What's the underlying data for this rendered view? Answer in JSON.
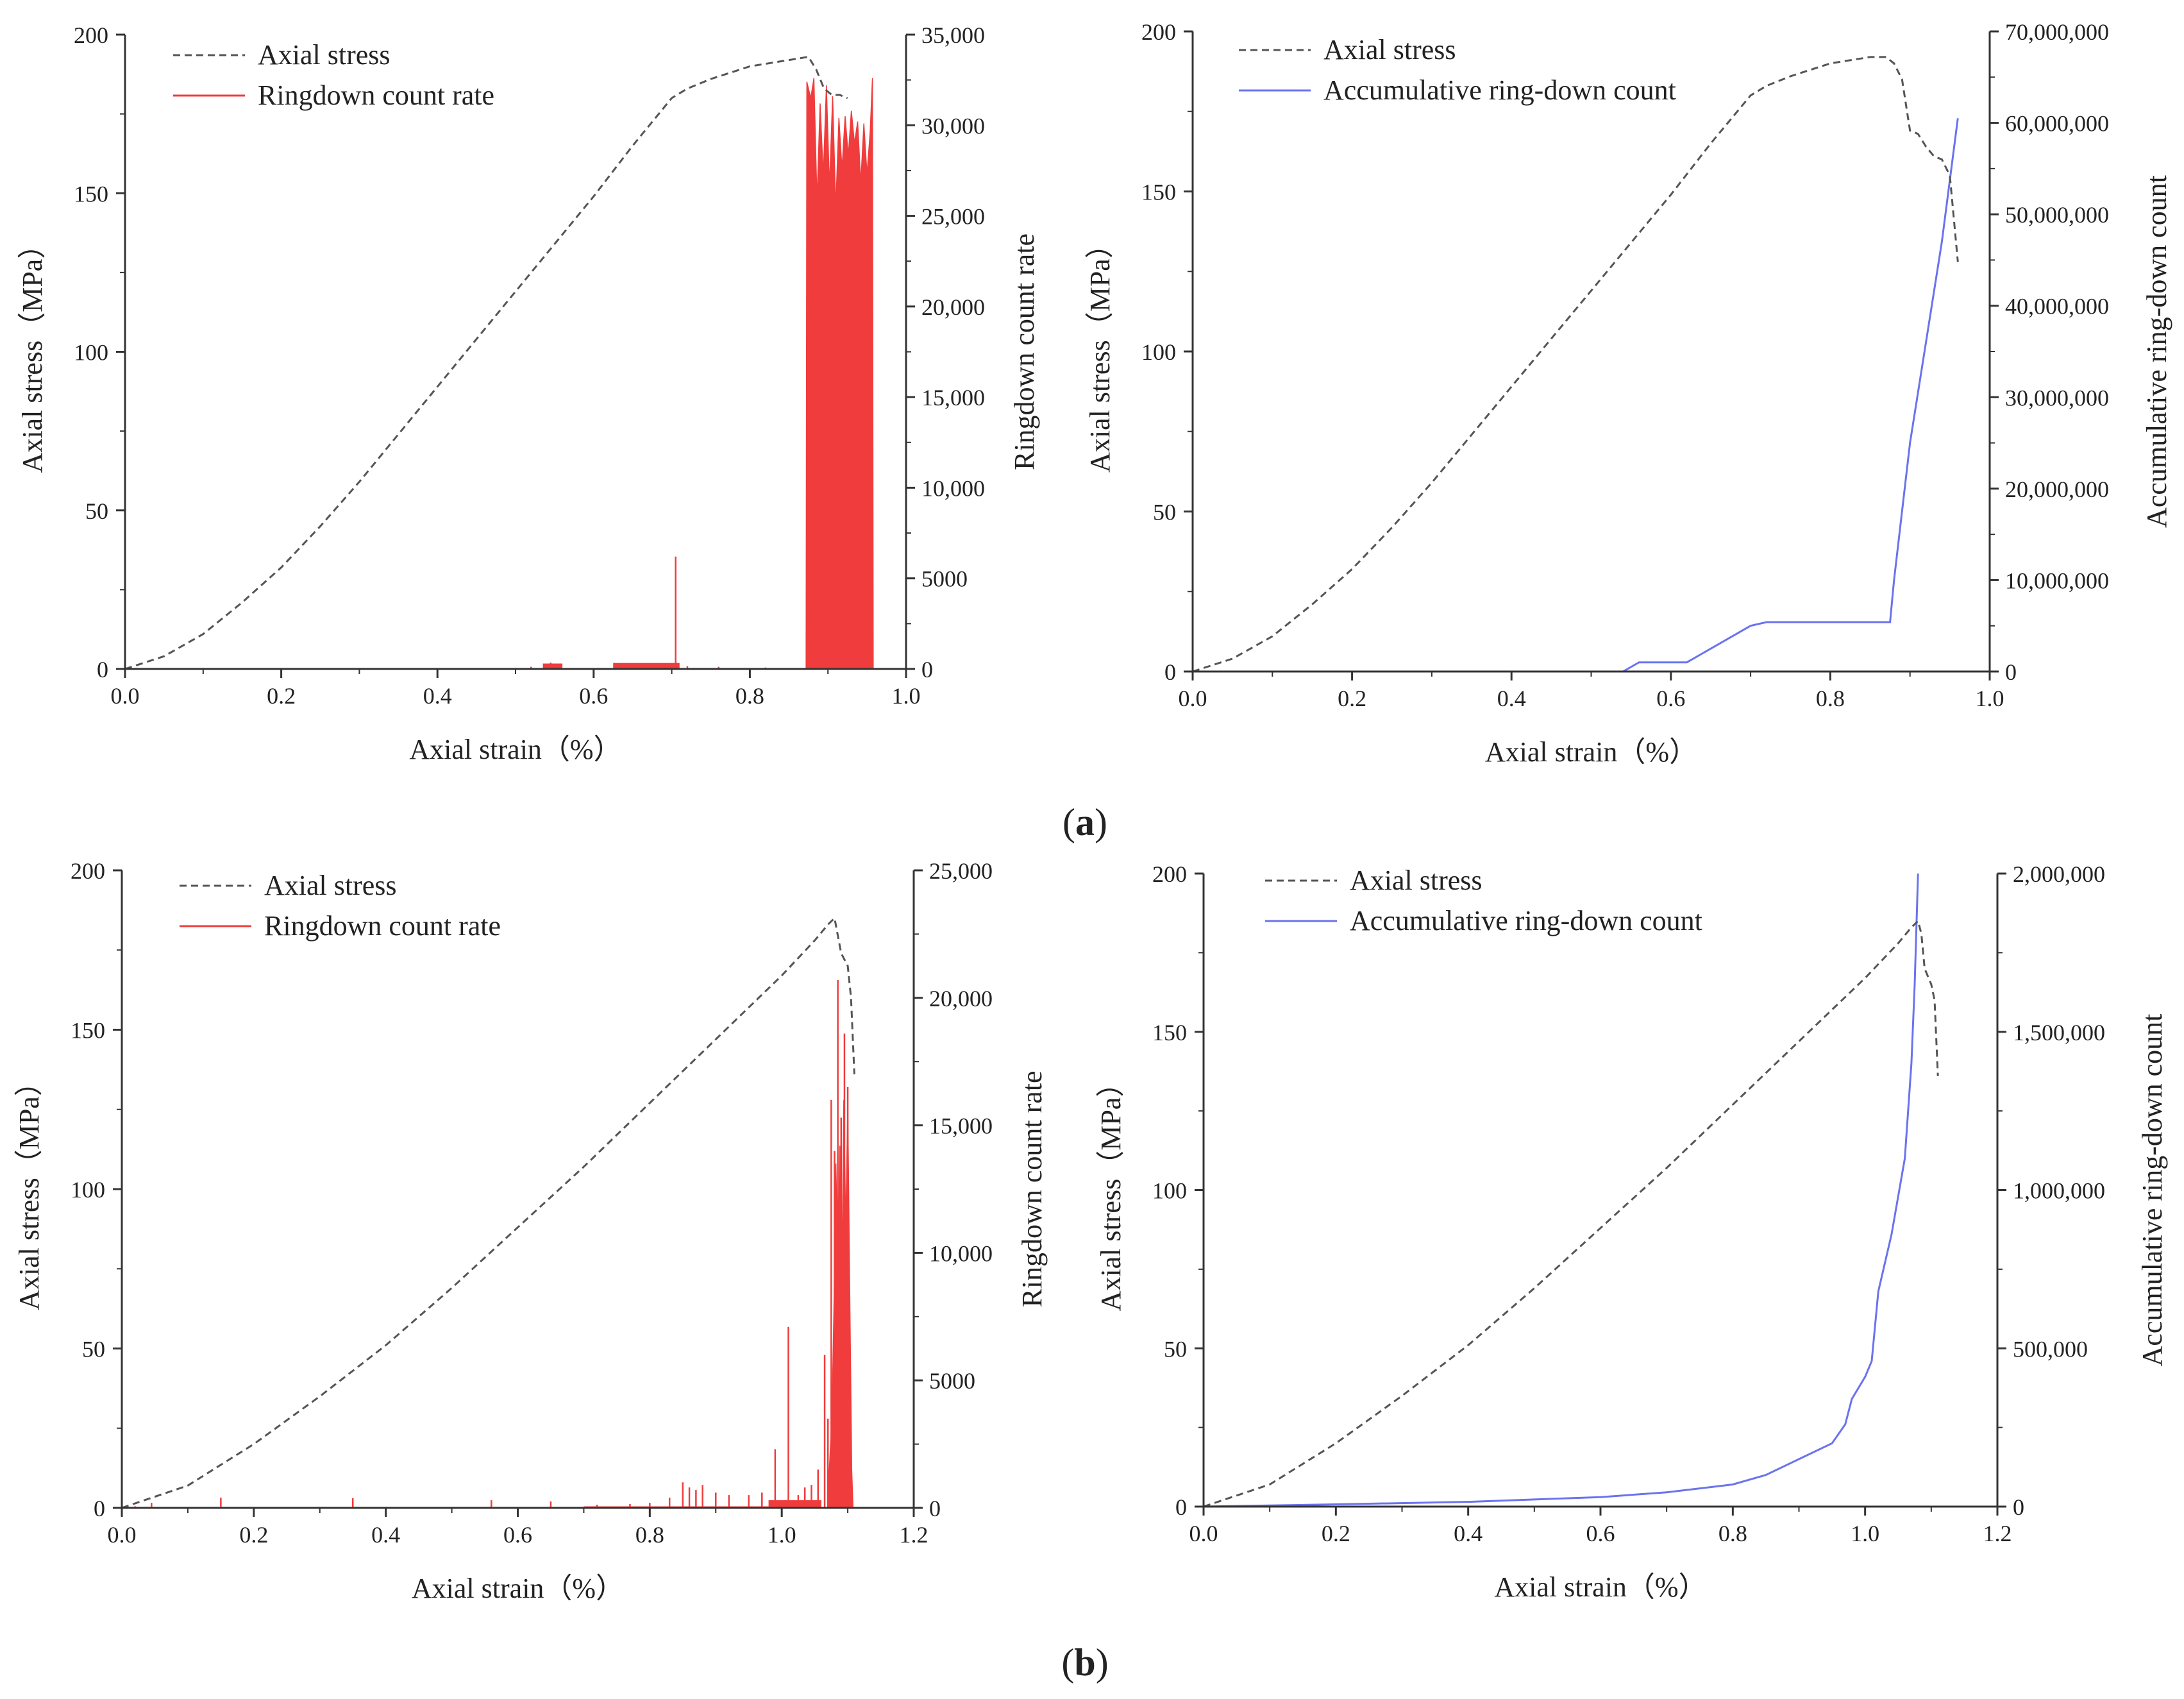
{
  "figure": {
    "labels": [
      {
        "prefix": "(",
        "letter": "a",
        "suffix": ")"
      },
      {
        "prefix": "(",
        "letter": "b",
        "suffix": ")"
      }
    ]
  },
  "colors": {
    "stress": "#555555",
    "rate": "#f03c3c",
    "cumulative": "#6a73ee",
    "axis": "#333333",
    "text": "#222222"
  },
  "chart_data": [
    {
      "id": "a-rate",
      "type": "line+bar",
      "x_label": "Axial strain（%）",
      "y_left_label": "Axial stress（MPa）",
      "y_right_label": "Ringdown count rate",
      "x_range": [
        0,
        1.0
      ],
      "x_ticks": [
        {
          "v": 0,
          "label": "0.0"
        },
        {
          "v": 0.2,
          "label": "0.2"
        },
        {
          "v": 0.4,
          "label": "0.4"
        },
        {
          "v": 0.6,
          "label": "0.6"
        },
        {
          "v": 0.8,
          "label": "0.8"
        },
        {
          "v": 1.0,
          "label": "1.0"
        }
      ],
      "y_left_range": [
        0,
        200
      ],
      "y_left_ticks": [
        {
          "v": 0,
          "label": "0"
        },
        {
          "v": 50,
          "label": "50"
        },
        {
          "v": 100,
          "label": "100"
        },
        {
          "v": 150,
          "label": "150"
        },
        {
          "v": 200,
          "label": "200"
        }
      ],
      "y_right_range": [
        0,
        35000
      ],
      "y_right_ticks": [
        {
          "v": 0,
          "label": "0"
        },
        {
          "v": 5000,
          "label": "5000"
        },
        {
          "v": 10000,
          "label": "10,000"
        },
        {
          "v": 15000,
          "label": "15,000"
        },
        {
          "v": 20000,
          "label": "20,000"
        },
        {
          "v": 25000,
          "label": "25,000"
        },
        {
          "v": 30000,
          "label": "30,000"
        },
        {
          "v": 35000,
          "label": "35,000"
        }
      ],
      "legend": [
        {
          "name": "Axial stress",
          "style": "dashed",
          "color": "#555555"
        },
        {
          "name": "Ringdown count rate",
          "style": "solid",
          "color": "#f03c3c"
        }
      ],
      "stress": {
        "x": [
          0,
          0.05,
          0.1,
          0.15,
          0.2,
          0.25,
          0.3,
          0.35,
          0.4,
          0.45,
          0.5,
          0.55,
          0.6,
          0.65,
          0.7,
          0.72,
          0.75,
          0.8,
          0.85,
          0.875,
          0.885,
          0.895,
          0.905,
          0.915,
          0.925
        ],
        "y": [
          0,
          4,
          11,
          21,
          32,
          45,
          59,
          74,
          89,
          104,
          119,
          134,
          149,
          165,
          180,
          183,
          186,
          190,
          192,
          193,
          189,
          183,
          181,
          181,
          180
        ]
      },
      "rate": {
        "spikes": [
          [
            0.52,
            120
          ],
          [
            0.545,
            350
          ],
          [
            0.555,
            300
          ],
          [
            0.64,
            320
          ],
          [
            0.68,
            320
          ],
          [
            0.705,
            6200
          ],
          [
            0.72,
            150
          ],
          [
            0.76,
            120
          ],
          [
            0.82,
            80
          ]
        ],
        "bands": [
          [
            0.535,
            0.56,
            300
          ],
          [
            0.625,
            0.71,
            330
          ]
        ],
        "envelope": [
          [
            0.872,
            0
          ],
          [
            0.873,
            32400
          ],
          [
            0.878,
            31500
          ],
          [
            0.882,
            32600
          ],
          [
            0.886,
            25800
          ],
          [
            0.89,
            31200
          ],
          [
            0.894,
            27200
          ],
          [
            0.898,
            32200
          ],
          [
            0.902,
            26600
          ],
          [
            0.906,
            31600
          ],
          [
            0.91,
            25400
          ],
          [
            0.914,
            30400
          ],
          [
            0.918,
            27600
          ],
          [
            0.922,
            30500
          ],
          [
            0.926,
            28300
          ],
          [
            0.93,
            30800
          ],
          [
            0.934,
            29000
          ],
          [
            0.938,
            30200
          ],
          [
            0.942,
            26800
          ],
          [
            0.946,
            30100
          ],
          [
            0.95,
            27300
          ],
          [
            0.954,
            29600
          ],
          [
            0.957,
            32600
          ],
          [
            0.958,
            0
          ]
        ]
      }
    },
    {
      "id": "a-cum",
      "type": "line",
      "x_label": "Axial strain（%）",
      "y_left_label": "Axial stress（MPa）",
      "y_right_label": "Accumulative ring-down count",
      "x_range": [
        0,
        1.0
      ],
      "x_ticks": [
        {
          "v": 0,
          "label": "0.0"
        },
        {
          "v": 0.2,
          "label": "0.2"
        },
        {
          "v": 0.4,
          "label": "0.4"
        },
        {
          "v": 0.6,
          "label": "0.6"
        },
        {
          "v": 0.8,
          "label": "0.8"
        },
        {
          "v": 1.0,
          "label": "1.0"
        }
      ],
      "y_left_range": [
        0,
        200
      ],
      "y_left_ticks": [
        {
          "v": 0,
          "label": "0"
        },
        {
          "v": 50,
          "label": "50"
        },
        {
          "v": 100,
          "label": "100"
        },
        {
          "v": 150,
          "label": "150"
        },
        {
          "v": 200,
          "label": "200"
        }
      ],
      "y_right_range": [
        0,
        70000000
      ],
      "y_right_ticks": [
        {
          "v": 0,
          "label": "0"
        },
        {
          "v": 10000000,
          "label": "10,000,000"
        },
        {
          "v": 20000000,
          "label": "20,000,000"
        },
        {
          "v": 30000000,
          "label": "30,000,000"
        },
        {
          "v": 40000000,
          "label": "40,000,000"
        },
        {
          "v": 50000000,
          "label": "50,000,000"
        },
        {
          "v": 60000000,
          "label": "60,000,000"
        },
        {
          "v": 70000000,
          "label": "70,000,000"
        }
      ],
      "legend": [
        {
          "name": "Axial stress",
          "style": "dashed",
          "color": "#555555"
        },
        {
          "name": "Accumulative ring-down count",
          "style": "solid",
          "color": "#6a73ee"
        }
      ],
      "stress": {
        "x": [
          0,
          0.05,
          0.1,
          0.15,
          0.2,
          0.25,
          0.3,
          0.35,
          0.4,
          0.45,
          0.5,
          0.55,
          0.6,
          0.65,
          0.7,
          0.72,
          0.75,
          0.8,
          0.85,
          0.87,
          0.88,
          0.89,
          0.9,
          0.91,
          0.92,
          0.93,
          0.94,
          0.95,
          0.96
        ],
        "y": [
          0,
          4,
          11,
          21,
          32,
          45,
          59,
          74,
          89,
          104,
          119,
          134,
          149,
          165,
          180,
          183,
          186,
          190,
          192,
          192,
          190,
          185,
          169,
          168,
          164,
          161,
          160,
          155,
          128
        ]
      },
      "cumulative": {
        "x": [
          0.54,
          0.56,
          0.62,
          0.64,
          0.7,
          0.72,
          0.8,
          0.875,
          0.88,
          0.9,
          0.92,
          0.94,
          0.96
        ],
        "y": [
          0,
          1000000,
          1000000,
          2000000,
          5000000,
          5400000,
          5400000,
          5400000,
          10000000,
          25000000,
          36000000,
          47000000,
          60500000
        ]
      }
    },
    {
      "id": "b-rate",
      "type": "line+bar",
      "x_label": "Axial strain（%）",
      "y_left_label": "Axial stress（MPa）",
      "y_right_label": "Ringdown count rate",
      "x_range": [
        0,
        1.2
      ],
      "x_ticks": [
        {
          "v": 0,
          "label": "0.0"
        },
        {
          "v": 0.2,
          "label": "0.2"
        },
        {
          "v": 0.4,
          "label": "0.4"
        },
        {
          "v": 0.6,
          "label": "0.6"
        },
        {
          "v": 0.8,
          "label": "0.8"
        },
        {
          "v": 1.0,
          "label": "1.0"
        },
        {
          "v": 1.2,
          "label": "1.2"
        }
      ],
      "y_left_range": [
        0,
        200
      ],
      "y_left_ticks": [
        {
          "v": 0,
          "label": "0"
        },
        {
          "v": 50,
          "label": "50"
        },
        {
          "v": 100,
          "label": "100"
        },
        {
          "v": 150,
          "label": "150"
        },
        {
          "v": 200,
          "label": "200"
        }
      ],
      "y_right_range": [
        0,
        25000
      ],
      "y_right_ticks": [
        {
          "v": 0,
          "label": "0"
        },
        {
          "v": 5000,
          "label": "5000"
        },
        {
          "v": 10000,
          "label": "10,000"
        },
        {
          "v": 15000,
          "label": "15,000"
        },
        {
          "v": 20000,
          "label": "20,000"
        },
        {
          "v": 25000,
          "label": "25,000"
        }
      ],
      "legend": [
        {
          "name": "Axial stress",
          "style": "dashed",
          "color": "#555555"
        },
        {
          "name": "Ringdown count rate",
          "style": "solid",
          "color": "#f03c3c"
        }
      ],
      "stress": {
        "x": [
          0,
          0.1,
          0.2,
          0.3,
          0.4,
          0.5,
          0.6,
          0.7,
          0.8,
          0.9,
          1.0,
          1.05,
          1.07,
          1.08,
          1.09,
          1.1,
          1.105,
          1.11
        ],
        "y": [
          0,
          7,
          20,
          35,
          51,
          69,
          88,
          107,
          127,
          147,
          167,
          178,
          183,
          185,
          174,
          170,
          160,
          136
        ]
      },
      "rate": {
        "spikes": [
          [
            0.02,
            60
          ],
          [
            0.045,
            200
          ],
          [
            0.15,
            400
          ],
          [
            0.35,
            380
          ],
          [
            0.56,
            300
          ],
          [
            0.65,
            250
          ],
          [
            0.72,
            120
          ],
          [
            0.77,
            150
          ],
          [
            0.8,
            200
          ],
          [
            0.83,
            400
          ],
          [
            0.85,
            1000
          ],
          [
            0.86,
            800
          ],
          [
            0.87,
            700
          ],
          [
            0.88,
            900
          ],
          [
            0.9,
            600
          ],
          [
            0.92,
            500
          ],
          [
            0.95,
            500
          ],
          [
            0.97,
            600
          ],
          [
            0.99,
            2300
          ],
          [
            1.005,
            300
          ],
          [
            1.01,
            7100
          ],
          [
            1.025,
            500
          ],
          [
            1.035,
            800
          ],
          [
            1.045,
            900
          ],
          [
            1.055,
            1500
          ],
          [
            1.065,
            6000
          ],
          [
            1.07,
            3500
          ],
          [
            1.075,
            16000
          ],
          [
            1.08,
            14000
          ],
          [
            1.085,
            20700
          ],
          [
            1.09,
            15300
          ],
          [
            1.095,
            18600
          ],
          [
            1.1,
            16500
          ]
        ],
        "bands": [
          [
            0.7,
            0.98,
            60
          ],
          [
            0.98,
            1.06,
            300
          ]
        ],
        "envelope": [
          [
            1.07,
            0
          ],
          [
            1.072,
            1500
          ],
          [
            1.076,
            3500
          ],
          [
            1.079,
            7800
          ],
          [
            1.082,
            13500
          ],
          [
            1.085,
            9500
          ],
          [
            1.088,
            14200
          ],
          [
            1.091,
            9000
          ],
          [
            1.094,
            16000
          ],
          [
            1.097,
            11000
          ],
          [
            1.1,
            15800
          ],
          [
            1.103,
            8500
          ],
          [
            1.106,
            1500
          ],
          [
            1.108,
            0
          ]
        ]
      }
    },
    {
      "id": "b-cum",
      "type": "line",
      "x_label": "Axial strain（%）",
      "y_left_label": "Axial stress（MPa）",
      "y_right_label": "Accumulative ring-down count",
      "x_range": [
        0,
        1.2
      ],
      "x_ticks": [
        {
          "v": 0,
          "label": "0.0"
        },
        {
          "v": 0.2,
          "label": "0.2"
        },
        {
          "v": 0.4,
          "label": "0.4"
        },
        {
          "v": 0.6,
          "label": "0.6"
        },
        {
          "v": 0.8,
          "label": "0.8"
        },
        {
          "v": 1.0,
          "label": "1.0"
        },
        {
          "v": 1.2,
          "label": "1.2"
        }
      ],
      "y_left_range": [
        0,
        200
      ],
      "y_left_ticks": [
        {
          "v": 0,
          "label": "0"
        },
        {
          "v": 50,
          "label": "50"
        },
        {
          "v": 100,
          "label": "100"
        },
        {
          "v": 150,
          "label": "150"
        },
        {
          "v": 200,
          "label": "200"
        }
      ],
      "y_right_range": [
        0,
        2000000
      ],
      "y_right_ticks": [
        {
          "v": 0,
          "label": "0"
        },
        {
          "v": 500000,
          "label": "500,000"
        },
        {
          "v": 1000000,
          "label": "1,000,000"
        },
        {
          "v": 1500000,
          "label": "1,500,000"
        },
        {
          "v": 2000000,
          "label": "2,000,000"
        }
      ],
      "legend": [
        {
          "name": "Axial stress",
          "style": "dashed",
          "color": "#555555"
        },
        {
          "name": "Accumulative ring-down count",
          "style": "solid",
          "color": "#6a73ee"
        }
      ],
      "stress": {
        "x": [
          0,
          0.1,
          0.2,
          0.3,
          0.4,
          0.5,
          0.6,
          0.7,
          0.8,
          0.9,
          1.0,
          1.05,
          1.07,
          1.08,
          1.085,
          1.09,
          1.1,
          1.105,
          1.11
        ],
        "y": [
          0,
          7,
          20,
          35,
          51,
          69,
          88,
          107,
          127,
          147,
          167,
          178,
          183,
          185,
          181,
          170,
          165,
          160,
          136
        ]
      },
      "cumulative": {
        "x": [
          0,
          0.2,
          0.4,
          0.6,
          0.7,
          0.8,
          0.85,
          0.9,
          0.95,
          0.97,
          0.98,
          1.0,
          1.01,
          1.02,
          1.04,
          1.06,
          1.07,
          1.075,
          1.08
        ],
        "y": [
          0,
          7000,
          15000,
          30000,
          45000,
          70000,
          100000,
          150000,
          200000,
          260000,
          340000,
          410000,
          460000,
          680000,
          860000,
          1100000,
          1400000,
          1650000,
          2000000
        ]
      }
    }
  ]
}
